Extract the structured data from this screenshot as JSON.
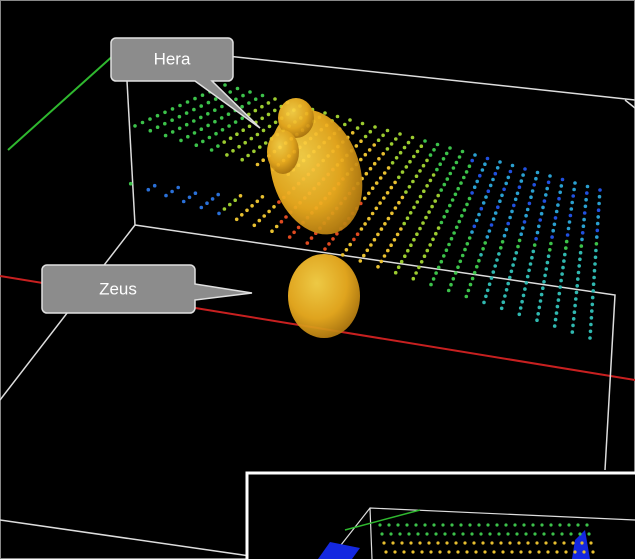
{
  "callouts": [
    {
      "label": "Hera"
    },
    {
      "label": "Zeus"
    }
  ]
}
